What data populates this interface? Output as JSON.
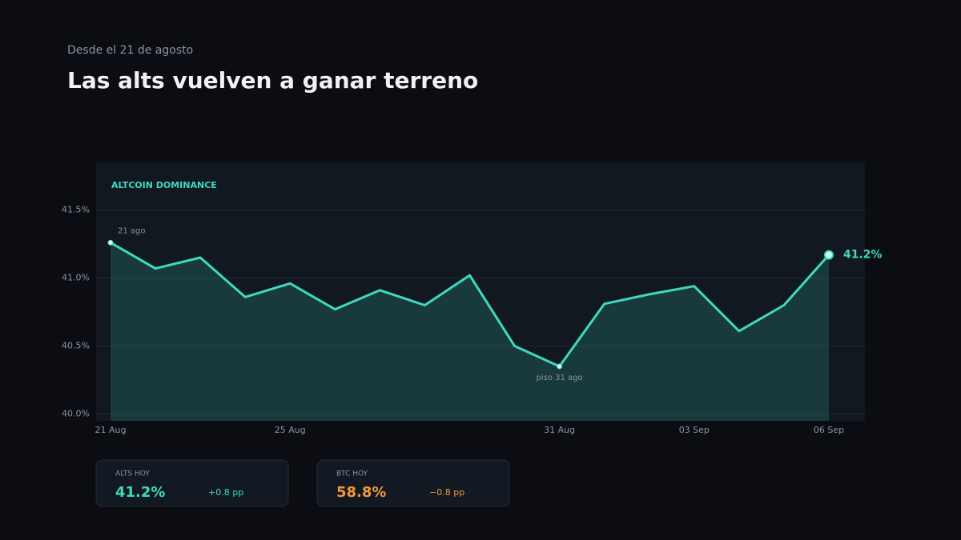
{
  "chart_data": {
    "type": "line",
    "subtitle": "Desde el 21 de agosto",
    "title": "Las alts vuelven a ganar terreno",
    "categories": [
      "21 Aug",
      null,
      null,
      null,
      "25 Aug",
      null,
      null,
      null,
      null,
      null,
      "31 Aug",
      null,
      null,
      "03 Sep",
      null,
      null,
      "06 Sep"
    ],
    "series": [
      {
        "name": "ALTCOIN DOMINANCE",
        "color": "#3fd9bf",
        "values": [
          41.26,
          41.07,
          41.15,
          40.86,
          40.96,
          40.77,
          40.91,
          40.8,
          41.02,
          40.5,
          40.35,
          40.81,
          40.88,
          40.94,
          40.61,
          40.8,
          41.17
        ],
        "value_labels": [
          null,
          null,
          null,
          null,
          null,
          null,
          null,
          null,
          null,
          null,
          null,
          null,
          null,
          null,
          null,
          null,
          "41.2%"
        ]
      }
    ],
    "annotations": [
      {
        "index": 0,
        "text": "21 ago"
      },
      {
        "index": 10,
        "text": "piso 31 ago"
      }
    ],
    "ylim": [
      39.95,
      41.85
    ],
    "yticks": [
      {
        "value": 40,
        "label": "40.0%"
      },
      {
        "value": 40.5,
        "label": "40.5%"
      },
      {
        "value": 41,
        "label": "41.0%"
      },
      {
        "value": 41.5,
        "label": "41.5%"
      }
    ],
    "grid": true
  },
  "cards": [
    {
      "label": "ALTS HOY",
      "value": "41.2%",
      "change": "+0.8 pp",
      "color": "#3fd9bf"
    },
    {
      "label": "BTC HOY",
      "value": "58.8%",
      "change": "−0.8 pp",
      "color": "#f0973a"
    }
  ]
}
